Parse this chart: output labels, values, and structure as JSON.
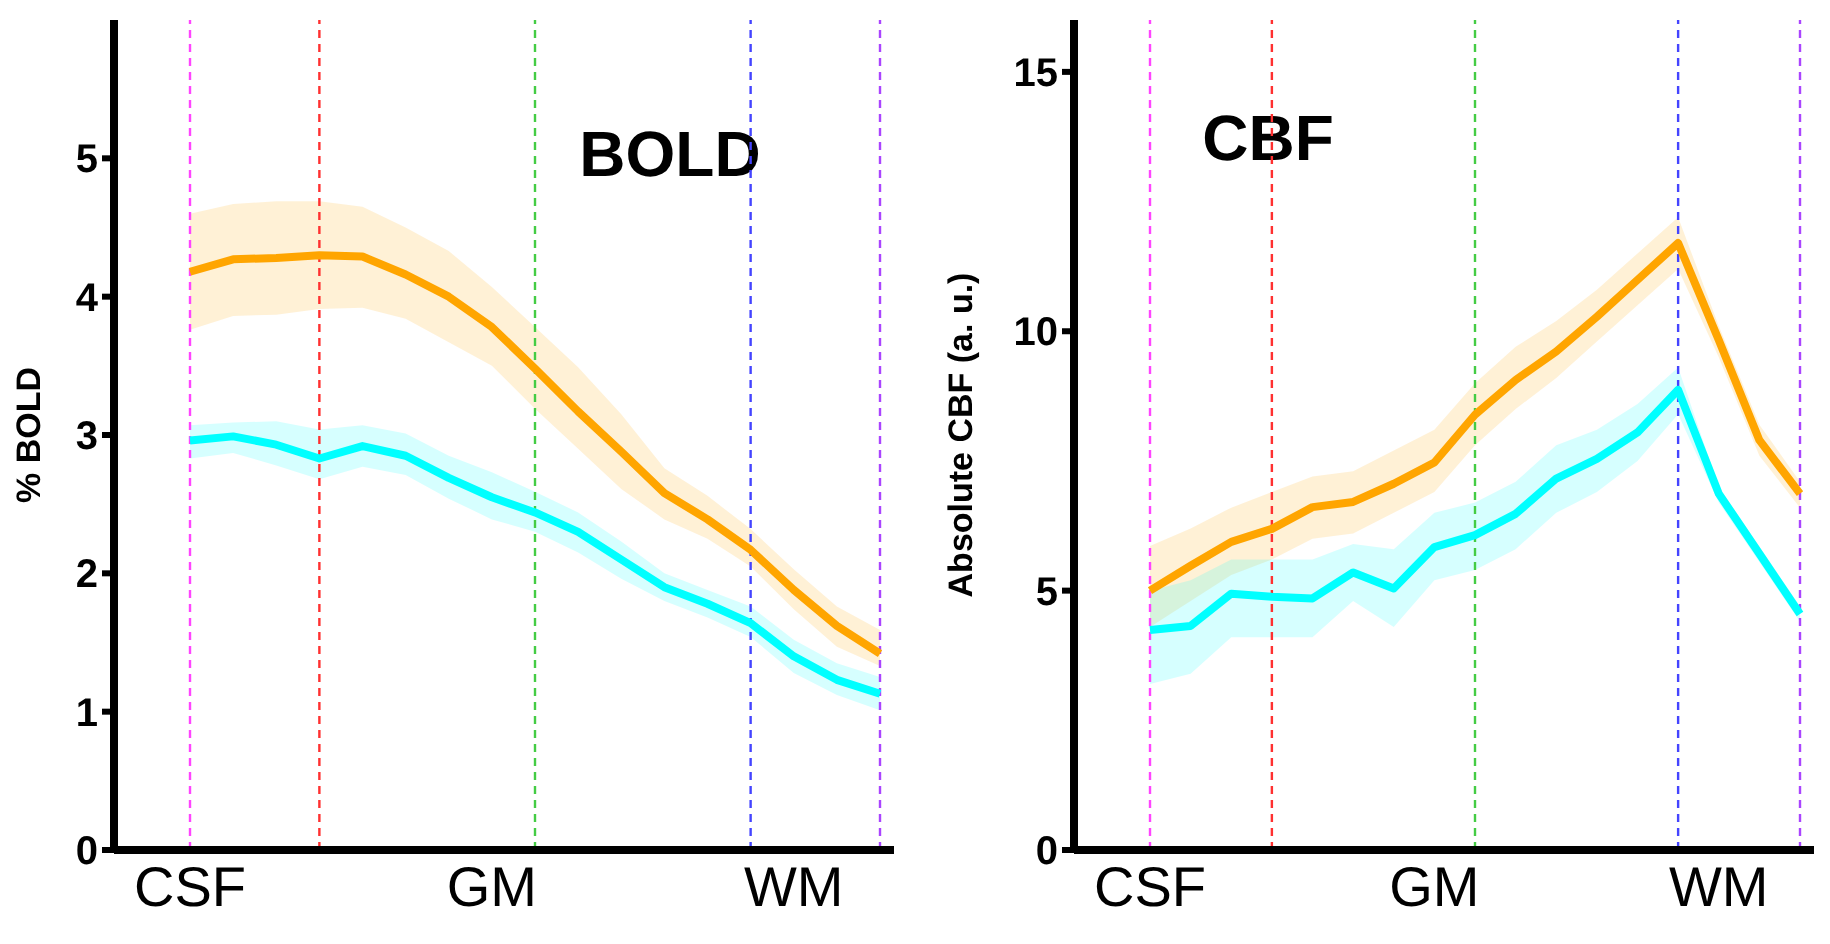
{
  "chart_data": [
    {
      "type": "line",
      "title": "BOLD",
      "ylabel": "% BOLD",
      "categories": [
        "CSF",
        null,
        null,
        null,
        null,
        null,
        null,
        "GM",
        null,
        null,
        null,
        null,
        null,
        null,
        "WM",
        null,
        null
      ],
      "ylim": [
        0,
        6
      ],
      "yticks": [
        0,
        1,
        2,
        3,
        4,
        5
      ],
      "grid": false,
      "legend": false,
      "marker": "none",
      "line_style": "solid",
      "series": [
        {
          "color": "#ffa500",
          "values": [
            4.18,
            4.27,
            4.28,
            4.3,
            4.29,
            4.16,
            4.0,
            3.78,
            3.48,
            3.17,
            2.88,
            2.58,
            2.39,
            2.17,
            1.88,
            1.62,
            1.42
          ],
          "upper": [
            4.6,
            4.67,
            4.69,
            4.69,
            4.65,
            4.5,
            4.33,
            4.07,
            3.78,
            3.49,
            3.15,
            2.76,
            2.56,
            2.32,
            2.03,
            1.76,
            1.59
          ],
          "lower": [
            3.76,
            3.86,
            3.87,
            3.91,
            3.92,
            3.84,
            3.67,
            3.5,
            3.19,
            2.9,
            2.61,
            2.39,
            2.25,
            2.05,
            1.74,
            1.47,
            1.33
          ]
        },
        {
          "color": "#00ffff",
          "values": [
            2.96,
            2.99,
            2.93,
            2.83,
            2.92,
            2.85,
            2.69,
            2.55,
            2.44,
            2.3,
            2.1,
            1.9,
            1.78,
            1.64,
            1.4,
            1.23,
            1.13
          ],
          "upper": [
            3.07,
            3.09,
            3.1,
            3.04,
            3.07,
            3.01,
            2.85,
            2.73,
            2.59,
            2.44,
            2.23,
            2.0,
            1.88,
            1.76,
            1.52,
            1.35,
            1.25
          ],
          "lower": [
            2.83,
            2.87,
            2.78,
            2.68,
            2.77,
            2.71,
            2.54,
            2.39,
            2.3,
            2.15,
            1.96,
            1.8,
            1.68,
            1.54,
            1.28,
            1.12,
            1.01
          ]
        }
      ]
    },
    {
      "type": "line",
      "title": "CBF",
      "ylabel": "Absolute CBF (a. u.)",
      "categories": [
        "CSF",
        null,
        null,
        null,
        null,
        null,
        null,
        "GM",
        null,
        null,
        null,
        null,
        null,
        null,
        "WM",
        null,
        null
      ],
      "ylim": [
        0,
        16
      ],
      "yticks": [
        0,
        5,
        10,
        15
      ],
      "grid": false,
      "legend": false,
      "marker": "none",
      "line_style": "solid",
      "series": [
        {
          "color": "#ffa500",
          "values": [
            5.0,
            5.48,
            5.94,
            6.19,
            6.61,
            6.71,
            7.06,
            7.47,
            8.39,
            9.06,
            9.61,
            10.28,
            10.99,
            11.7,
            9.83,
            7.9,
            6.87
          ],
          "upper": [
            5.86,
            6.2,
            6.6,
            6.9,
            7.2,
            7.3,
            7.7,
            8.1,
            9.0,
            9.7,
            10.2,
            10.8,
            11.5,
            12.2,
            10.1,
            8.2,
            7.1
          ],
          "lower": [
            4.3,
            4.8,
            5.3,
            5.6,
            6.0,
            6.1,
            6.5,
            6.9,
            7.8,
            8.5,
            9.1,
            9.8,
            10.5,
            11.2,
            9.5,
            7.6,
            6.6
          ]
        },
        {
          "color": "#00ffff",
          "values": [
            4.24,
            4.32,
            4.94,
            4.88,
            4.85,
            5.35,
            5.04,
            5.84,
            6.07,
            6.48,
            7.16,
            7.54,
            8.05,
            8.87,
            6.87,
            5.71,
            4.55
          ],
          "upper": [
            5.0,
            5.2,
            5.6,
            5.6,
            5.6,
            5.9,
            5.8,
            6.5,
            6.7,
            7.1,
            7.8,
            8.1,
            8.6,
            9.3,
            7.0,
            5.85,
            4.7
          ],
          "lower": [
            3.2,
            3.4,
            4.1,
            4.1,
            4.1,
            4.8,
            4.3,
            5.2,
            5.4,
            5.8,
            6.5,
            6.9,
            7.5,
            8.4,
            6.7,
            5.55,
            4.4
          ]
        }
      ]
    }
  ]
}
